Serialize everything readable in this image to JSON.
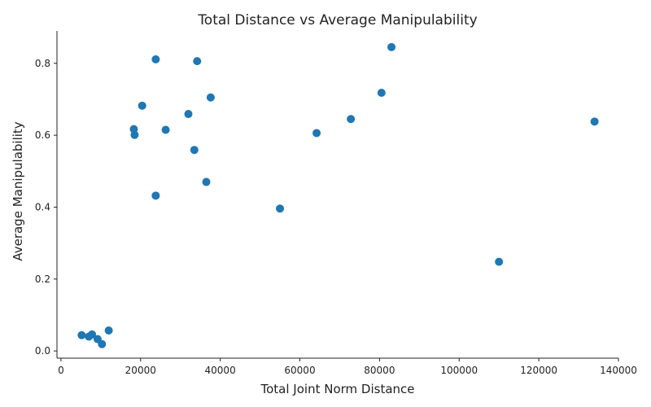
{
  "chart_data": {
    "type": "scatter",
    "title": "Total Distance vs Average Manipulability",
    "xlabel": "Total Joint Norm Distance",
    "ylabel": "Average Manipulability",
    "xlim": [
      -1000,
      140000
    ],
    "ylim": [
      -0.02,
      0.89
    ],
    "x_ticks": [
      0,
      20000,
      40000,
      60000,
      80000,
      100000,
      120000,
      140000
    ],
    "x_tick_labels": [
      "0",
      "20000",
      "40000",
      "60000",
      "80000",
      "100000",
      "120000",
      "140000"
    ],
    "y_ticks": [
      0.0,
      0.2,
      0.4,
      0.6,
      0.8
    ],
    "y_tick_labels": [
      "0.0",
      "0.2",
      "0.4",
      "0.6",
      "0.8"
    ],
    "grid": false,
    "marker_color": "#1f77b4",
    "points": [
      {
        "x": 5200,
        "y": 0.044
      },
      {
        "x": 7000,
        "y": 0.04
      },
      {
        "x": 7800,
        "y": 0.046
      },
      {
        "x": 9200,
        "y": 0.033
      },
      {
        "x": 10300,
        "y": 0.019
      },
      {
        "x": 12000,
        "y": 0.057
      },
      {
        "x": 18300,
        "y": 0.617
      },
      {
        "x": 18500,
        "y": 0.601
      },
      {
        "x": 20400,
        "y": 0.682
      },
      {
        "x": 23800,
        "y": 0.811
      },
      {
        "x": 23800,
        "y": 0.432
      },
      {
        "x": 26300,
        "y": 0.615
      },
      {
        "x": 32000,
        "y": 0.659
      },
      {
        "x": 33500,
        "y": 0.559
      },
      {
        "x": 34200,
        "y": 0.806
      },
      {
        "x": 36500,
        "y": 0.47
      },
      {
        "x": 37600,
        "y": 0.705
      },
      {
        "x": 55000,
        "y": 0.396
      },
      {
        "x": 64200,
        "y": 0.606
      },
      {
        "x": 72800,
        "y": 0.645
      },
      {
        "x": 80500,
        "y": 0.718
      },
      {
        "x": 83000,
        "y": 0.845
      },
      {
        "x": 110000,
        "y": 0.248
      },
      {
        "x": 134000,
        "y": 0.638
      }
    ]
  }
}
